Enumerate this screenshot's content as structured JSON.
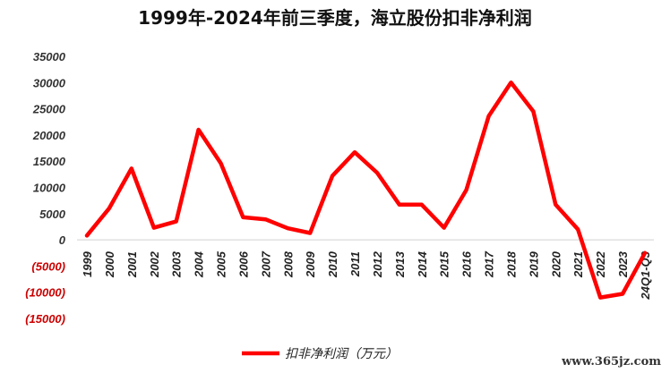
{
  "title": "1999年-2024年前三季度，海立股份扣非净利润",
  "chart_data": {
    "type": "line",
    "title": "1999年-2024年前三季度，海立股份扣非净利润",
    "categories": [
      "1999",
      "2000",
      "2001",
      "2002",
      "2003",
      "2004",
      "2005",
      "2006",
      "2007",
      "2008",
      "2009",
      "2010",
      "2011",
      "2012",
      "2013",
      "2014",
      "2015",
      "2016",
      "2017",
      "2018",
      "2019",
      "2020",
      "2021",
      "2022",
      "2023",
      "24Q1-Q3"
    ],
    "series": [
      {
        "name": "扣非净利润（万元）",
        "color": "#ff0000",
        "values": [
          800,
          6000,
          13600,
          2300,
          3500,
          21000,
          14600,
          4300,
          3900,
          2200,
          1300,
          12200,
          16700,
          12800,
          6700,
          6700,
          2300,
          9500,
          23600,
          30000,
          24500,
          6700,
          2000,
          -11000,
          -10300,
          -2500
        ]
      }
    ],
    "y_ticks": [
      {
        "label": "35000",
        "value": 35000
      },
      {
        "label": "30000",
        "value": 30000
      },
      {
        "label": "25000",
        "value": 25000
      },
      {
        "label": "20000",
        "value": 20000
      },
      {
        "label": "15000",
        "value": 15000
      },
      {
        "label": "10000",
        "value": 10000
      },
      {
        "label": "5000",
        "value": 5000
      },
      {
        "label": "0",
        "value": 0
      },
      {
        "label": "(5000)",
        "value": -5000
      },
      {
        "label": "(10000)",
        "value": -10000
      },
      {
        "label": "(15000)",
        "value": -15000
      }
    ],
    "ylim": [
      -15000,
      35000
    ],
    "negative_tick_color": "#cc0000",
    "positive_tick_color": "#333333",
    "grid": false,
    "legend_position": "bottom-center"
  },
  "watermark": "www.365jz.com"
}
